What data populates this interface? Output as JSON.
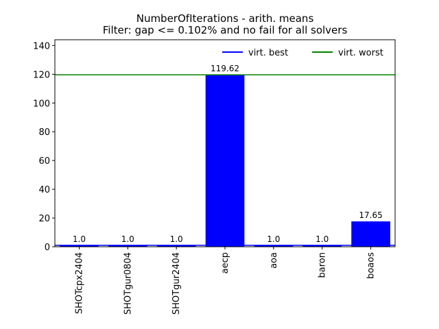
{
  "chart_data": {
    "type": "bar",
    "title": "NumberOfIterations - arith. means",
    "subtitle": "Filter: gap <= 0.102% and no fail for all solvers",
    "xlabel": "",
    "ylabel": "",
    "categories": [
      "SHOTcpx2404",
      "SHOTgur0804",
      "SHOTgur2404",
      "aecp",
      "aoa",
      "baron",
      "boaos"
    ],
    "values": [
      1.0,
      1.0,
      1.0,
      119.62,
      1.0,
      1.0,
      17.65
    ],
    "value_labels": [
      "1.0",
      "1.0",
      "1.0",
      "119.62",
      "1.0",
      "1.0",
      "17.65"
    ],
    "ylim": [
      0,
      144
    ],
    "yticks": [
      0,
      20,
      40,
      60,
      80,
      100,
      120,
      140
    ],
    "bar_color": "#0000ff",
    "grid": false,
    "legend_position": "top-right",
    "reference_lines": [
      {
        "name": "virt. best",
        "value": 1.0,
        "color": "#0000ff"
      },
      {
        "name": "virt. worst",
        "value": 119.62,
        "color": "#008000"
      }
    ]
  }
}
